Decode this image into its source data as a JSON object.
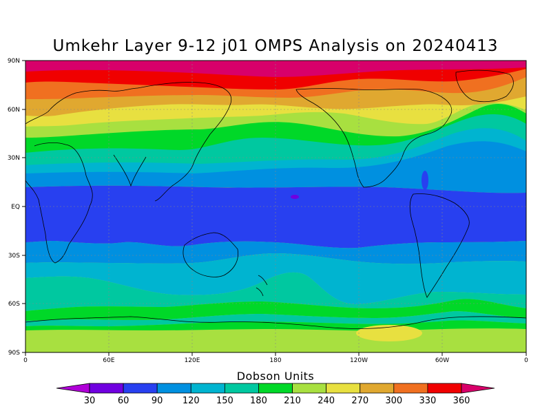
{
  "title": "Umkehr Layer 9-12 j01 OMPS Analysis on 20240413",
  "colorbar": {
    "title": "Dobson Units",
    "labels": [
      "30",
      "60",
      "90",
      "120",
      "150",
      "180",
      "210",
      "240",
      "270",
      "300",
      "330",
      "360"
    ],
    "colors": [
      "#b000d8",
      "#7000e0",
      "#2840f0",
      "#0090e0",
      "#00b4d0",
      "#00c8a0",
      "#00d828",
      "#a8e040",
      "#e8e040",
      "#e0a830",
      "#f07020",
      "#f00000",
      "#d8006a"
    ]
  },
  "axes": {
    "lat_labels": [
      "90N",
      "60N",
      "30N",
      "EQ",
      "30S",
      "60S",
      "90S"
    ],
    "lon_labels": [
      "0",
      "60E",
      "120E",
      "180",
      "120W",
      "60W",
      "0"
    ]
  },
  "chart_data": {
    "type": "heatmap",
    "title": "Umkehr Layer 9-12 j01 OMPS Analysis on 20240413",
    "units": "Dobson Units",
    "xlim": [
      0,
      360
    ],
    "ylim": [
      -90,
      90
    ],
    "grid": true,
    "contour_levels": [
      30,
      60,
      90,
      120,
      150,
      180,
      210,
      240,
      270,
      300,
      330,
      360
    ],
    "zonal_bands": [
      {
        "lat": 85,
        "value": 360
      },
      {
        "lat": 75,
        "value": 330
      },
      {
        "lat": 65,
        "value": 300
      },
      {
        "lat": 57,
        "value": 270
      },
      {
        "lat": 48,
        "value": 240
      },
      {
        "lat": 40,
        "value": 210
      },
      {
        "lat": 33,
        "value": 180
      },
      {
        "lat": 27,
        "value": 150
      },
      {
        "lat": 20,
        "value": 120
      },
      {
        "lat": 14,
        "value": 90
      },
      {
        "lat": 0,
        "value": 60
      },
      {
        "lat": -20,
        "value": 60
      },
      {
        "lat": -28,
        "value": 90
      },
      {
        "lat": -38,
        "value": 120
      },
      {
        "lat": -48,
        "value": 150
      },
      {
        "lat": -55,
        "value": 180
      },
      {
        "lat": -62,
        "value": 210
      },
      {
        "lat": -72,
        "value": 240
      },
      {
        "lat": -82,
        "value": 240
      }
    ]
  }
}
